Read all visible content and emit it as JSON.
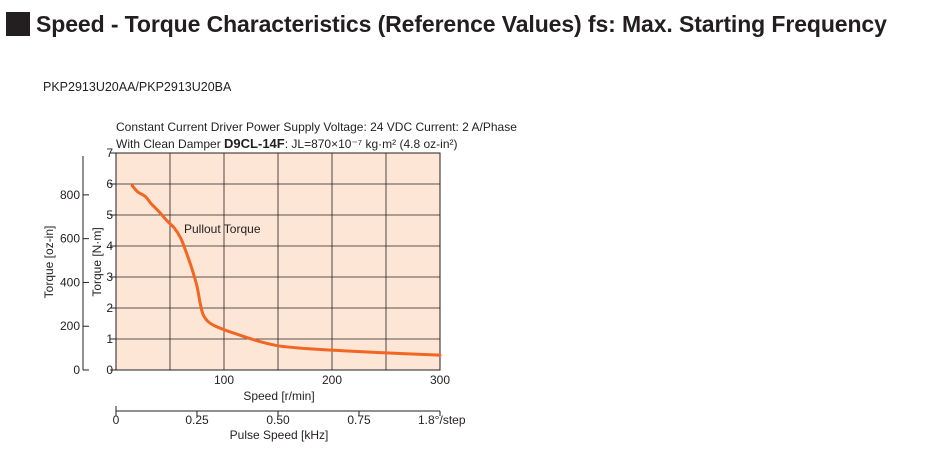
{
  "header": {
    "title": "Speed - Torque Characteristics (Reference Values) fs: Max. Starting Frequency"
  },
  "model": "PKP2913U20AA/PKP2913U20BA",
  "conditions": {
    "line1": "Constant Current Driver  Power Supply Voltage: 24 VDC  Current: 2 A/Phase",
    "line2_prefix": "With Clean Damper ",
    "damper_model": "D9CL-14F",
    "line2_suffix": ": JL=870×10⁻⁷ kg·m² (4.8 oz-in²)"
  },
  "colors": {
    "plot_bg": "#fde6d6",
    "curve": "#f26522",
    "grid": "#231f20"
  },
  "chart_data": {
    "type": "line",
    "xlabel": "Speed [r/min]",
    "ylabel_left": "Torque [oz-in]",
    "ylabel_right": "Torque [N·m]",
    "x2label": "Pulse Speed [kHz]",
    "xlim": [
      0,
      300
    ],
    "ylim": [
      0,
      7
    ],
    "x_ticks": [
      100,
      200,
      300
    ],
    "y_ticks_nm": [
      0,
      1,
      2,
      3,
      4,
      5,
      6,
      7
    ],
    "y_ticks_ozin": [
      0,
      200,
      400,
      600,
      800
    ],
    "x2_ticks": [
      "0",
      "0.25",
      "0.50",
      "0.75",
      "1.8°/step"
    ],
    "grid": true,
    "series": [
      {
        "name": "Pullout Torque",
        "x": [
          15,
          20,
          27,
          33,
          40,
          47,
          54,
          60,
          65,
          70,
          75,
          78,
          80,
          82,
          85,
          90,
          100,
          115,
          130,
          150,
          180,
          210,
          250,
          300
        ],
        "y": [
          5.95,
          5.75,
          5.6,
          5.35,
          5.1,
          4.82,
          4.58,
          4.25,
          3.8,
          3.3,
          2.7,
          2.15,
          1.85,
          1.7,
          1.57,
          1.45,
          1.3,
          1.12,
          0.95,
          0.78,
          0.68,
          0.62,
          0.55,
          0.48
        ]
      }
    ]
  }
}
